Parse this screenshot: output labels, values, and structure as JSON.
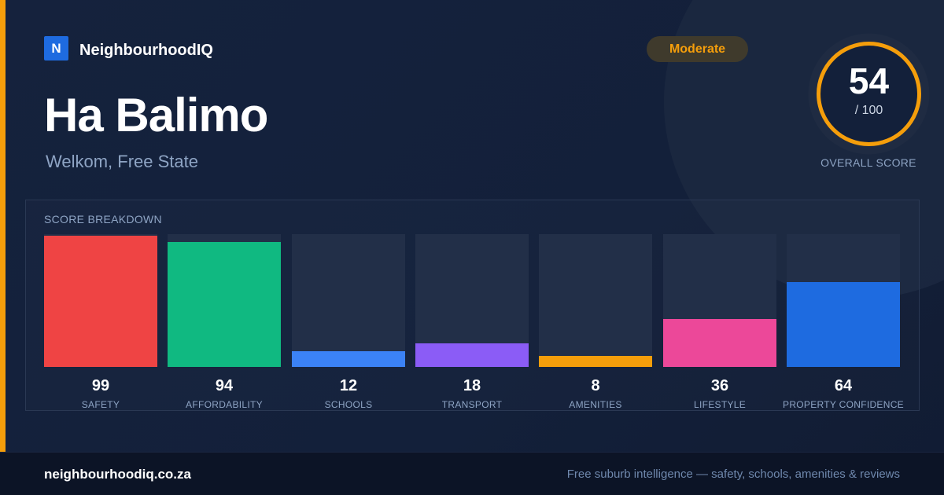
{
  "brand": {
    "logo_letter": "N",
    "name": "NeighbourhoodIQ"
  },
  "suburb": {
    "name": "Ha Balimo",
    "location": "Welkom, Free State"
  },
  "rating": {
    "label": "Moderate",
    "color": "#f59e0b"
  },
  "overall": {
    "score": "54",
    "max_label": "/ 100",
    "caption": "OVERALL SCORE",
    "fraction": 0.54,
    "ring_color": "#f59e0b"
  },
  "breakdown": {
    "title": "SCORE BREAKDOWN",
    "metrics": [
      {
        "label": "SAFETY",
        "value": "99",
        "score": 99,
        "color": "#ef4444"
      },
      {
        "label": "AFFORDABILITY",
        "value": "94",
        "score": 94,
        "color": "#10b981"
      },
      {
        "label": "SCHOOLS",
        "value": "12",
        "score": 12,
        "color": "#3b82f6"
      },
      {
        "label": "TRANSPORT",
        "value": "18",
        "score": 18,
        "color": "#8b5cf6"
      },
      {
        "label": "AMENITIES",
        "value": "8",
        "score": 8,
        "color": "#f59e0b"
      },
      {
        "label": "LIFESTYLE",
        "value": "36",
        "score": 36,
        "color": "#ec4899"
      },
      {
        "label": "PROPERTY CONFIDENCE",
        "value": "64",
        "score": 64,
        "color": "#1e6be0"
      }
    ]
  },
  "footer": {
    "domain": "neighbourhoodiq.co.za",
    "tagline": "Free suburb intelligence — safety, schools, amenities & reviews"
  }
}
